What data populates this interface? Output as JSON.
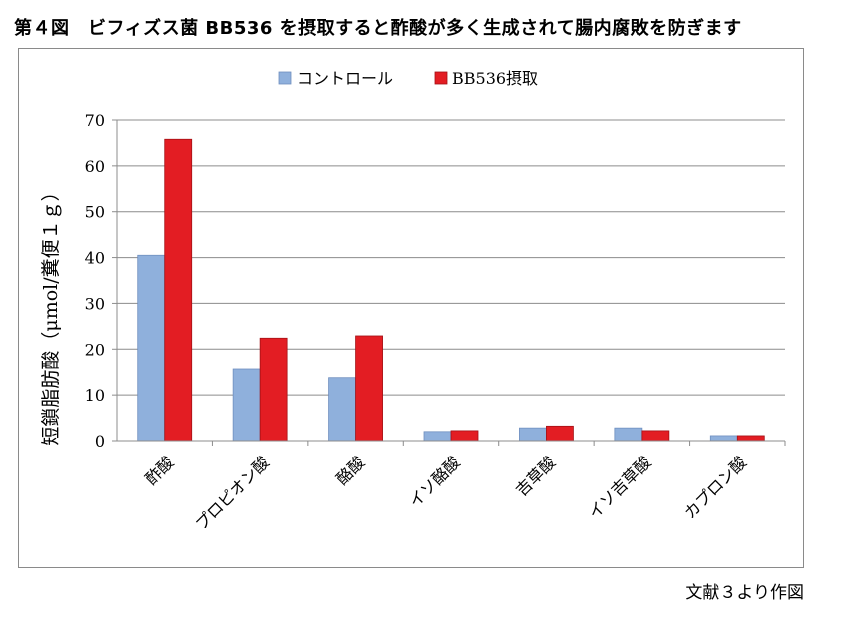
{
  "figure_title": "第４図　ビフィズス菌 BB536 を摂取すると酢酸が多く生成されて腸内腐敗を防ぎます",
  "source_note": "文献３より作図",
  "colors": {
    "control": "#8fb0dc",
    "bb536": "#e31d23"
  },
  "chart_data": {
    "type": "bar",
    "categories": [
      "酢酸",
      "プロピオン酸",
      "酪酸",
      "イソ酪酸",
      "吉草酸",
      "イソ吉草酸",
      "カプロン酸"
    ],
    "series": [
      {
        "name": "コントロール",
        "values": [
          40.5,
          15.7,
          13.8,
          2.0,
          2.8,
          2.8,
          1.1
        ]
      },
      {
        "name": "BB536摂取",
        "values": [
          65.8,
          22.4,
          22.9,
          2.2,
          3.2,
          2.2,
          1.1
        ]
      }
    ],
    "ylabel": "短鎖脂肪酸（μmol/糞便１ｇ）",
    "ylim": [
      0,
      70
    ],
    "yticks": [
      0,
      10,
      20,
      30,
      40,
      50,
      60,
      70
    ],
    "grid": true,
    "legend": "top-center"
  }
}
